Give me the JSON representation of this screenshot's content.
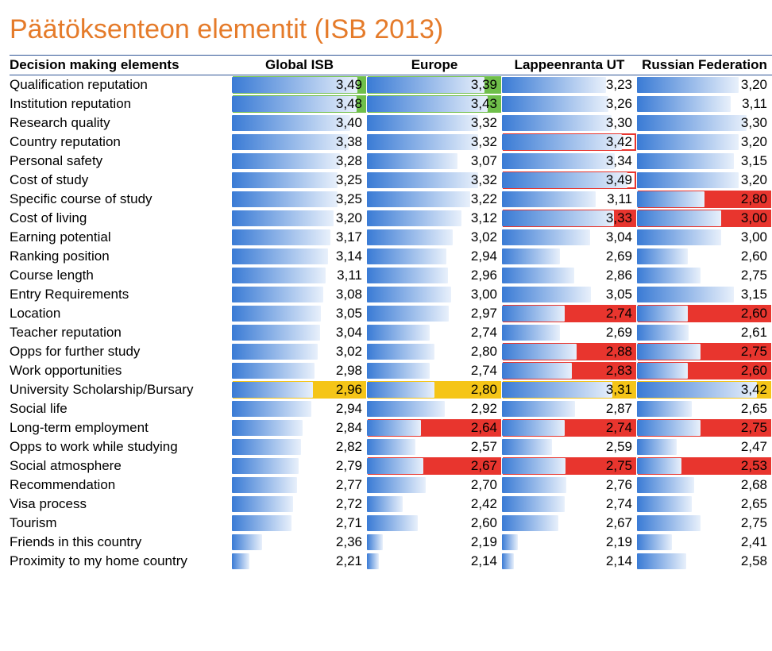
{
  "title": "Päätöksenteon elementit (ISB 2013)",
  "title_color": "#e57b2a",
  "columns": [
    "Decision making elements",
    "Global ISB",
    "Europe",
    "Lappeenranta UT",
    "Russian Federation"
  ],
  "header_border_color": "#2f5496",
  "header_bg": "#ffffff",
  "value_min": 2.0,
  "value_max": 3.6,
  "bar_gradient_from": "#3a7bd5",
  "bar_gradient_to": "#e8f0fb",
  "highlight_styles": {
    "green": {
      "fill": "#6fbf4a",
      "border": null
    },
    "red": {
      "fill": "#e8352e",
      "border": null
    },
    "yellow": {
      "fill": "#f5c518",
      "border": null
    },
    "red_box": {
      "fill": null,
      "border": "#e8352e"
    }
  },
  "rows": [
    {
      "label": "Qualification reputation",
      "v": [
        "3,49",
        "3,39",
        "3,23",
        "3,20"
      ],
      "hl": [
        "green",
        "green",
        null,
        null
      ]
    },
    {
      "label": "Institution reputation",
      "v": [
        "3,48",
        "3,43",
        "3,26",
        "3,11"
      ],
      "hl": [
        "green",
        "green",
        null,
        null
      ]
    },
    {
      "label": "Research quality",
      "v": [
        "3,40",
        "3,32",
        "3,30",
        "3,30"
      ],
      "hl": [
        null,
        null,
        null,
        null
      ]
    },
    {
      "label": "Country reputation",
      "v": [
        "3,38",
        "3,32",
        "3,42",
        "3,20"
      ],
      "hl": [
        null,
        null,
        "red_box",
        null
      ]
    },
    {
      "label": "Personal safety",
      "v": [
        "3,28",
        "3,07",
        "3,34",
        "3,15"
      ],
      "hl": [
        null,
        null,
        null,
        null
      ]
    },
    {
      "label": "Cost of study",
      "v": [
        "3,25",
        "3,32",
        "3,49",
        "3,20"
      ],
      "hl": [
        null,
        null,
        "red_box",
        null
      ]
    },
    {
      "label": "Specific course of study",
      "v": [
        "3,25",
        "3,22",
        "3,11",
        "2,80"
      ],
      "hl": [
        null,
        null,
        null,
        "red"
      ]
    },
    {
      "label": "Cost of living",
      "v": [
        "3,20",
        "3,12",
        "3,33",
        "3,00"
      ],
      "hl": [
        null,
        null,
        "red",
        "red"
      ]
    },
    {
      "label": "Earning potential",
      "v": [
        "3,17",
        "3,02",
        "3,04",
        "3,00"
      ],
      "hl": [
        null,
        null,
        null,
        null
      ]
    },
    {
      "label": "Ranking position",
      "v": [
        "3,14",
        "2,94",
        "2,69",
        "2,60"
      ],
      "hl": [
        null,
        null,
        null,
        null
      ]
    },
    {
      "label": "Course length",
      "v": [
        "3,11",
        "2,96",
        "2,86",
        "2,75"
      ],
      "hl": [
        null,
        null,
        null,
        null
      ]
    },
    {
      "label": "Entry Requirements",
      "v": [
        "3,08",
        "3,00",
        "3,05",
        "3,15"
      ],
      "hl": [
        null,
        null,
        null,
        null
      ]
    },
    {
      "label": "Location",
      "v": [
        "3,05",
        "2,97",
        "2,74",
        "2,60"
      ],
      "hl": [
        null,
        null,
        "red",
        "red"
      ]
    },
    {
      "label": "Teacher reputation",
      "v": [
        "3,04",
        "2,74",
        "2,69",
        "2,61"
      ],
      "hl": [
        null,
        null,
        null,
        null
      ]
    },
    {
      "label": "Opps for further study",
      "v": [
        "3,02",
        "2,80",
        "2,88",
        "2,75"
      ],
      "hl": [
        null,
        null,
        "red",
        "red"
      ]
    },
    {
      "label": "Work opportunities",
      "v": [
        "2,98",
        "2,74",
        "2,83",
        "2,60"
      ],
      "hl": [
        null,
        null,
        "red",
        "red"
      ]
    },
    {
      "label": "University Scholarship/Bursary",
      "v": [
        "2,96",
        "2,80",
        "3,31",
        "3,42"
      ],
      "hl": [
        "yellow",
        "yellow",
        "yellow",
        "yellow"
      ]
    },
    {
      "label": "Social life",
      "v": [
        "2,94",
        "2,92",
        "2,87",
        "2,65"
      ],
      "hl": [
        null,
        null,
        null,
        null
      ]
    },
    {
      "label": "Long-term employment",
      "v": [
        "2,84",
        "2,64",
        "2,74",
        "2,75"
      ],
      "hl": [
        null,
        "red",
        "red",
        "red"
      ]
    },
    {
      "label": "Opps to work while studying",
      "v": [
        "2,82",
        "2,57",
        "2,59",
        "2,47"
      ],
      "hl": [
        null,
        null,
        null,
        null
      ]
    },
    {
      "label": "Social atmosphere",
      "v": [
        "2,79",
        "2,67",
        "2,75",
        "2,53"
      ],
      "hl": [
        null,
        "red",
        "red",
        "red"
      ]
    },
    {
      "label": "Recommendation",
      "v": [
        "2,77",
        "2,70",
        "2,76",
        "2,68"
      ],
      "hl": [
        null,
        null,
        null,
        null
      ]
    },
    {
      "label": "Visa process",
      "v": [
        "2,72",
        "2,42",
        "2,74",
        "2,65"
      ],
      "hl": [
        null,
        null,
        null,
        null
      ]
    },
    {
      "label": "Tourism",
      "v": [
        "2,71",
        "2,60",
        "2,67",
        "2,75"
      ],
      "hl": [
        null,
        null,
        null,
        null
      ]
    },
    {
      "label": "Friends in this country",
      "v": [
        "2,36",
        "2,19",
        "2,19",
        "2,41"
      ],
      "hl": [
        null,
        null,
        null,
        null
      ]
    },
    {
      "label": "Proximity to my home country",
      "v": [
        "2,21",
        "2,14",
        "2,14",
        "2,58"
      ],
      "hl": [
        null,
        null,
        null,
        null
      ]
    }
  ]
}
